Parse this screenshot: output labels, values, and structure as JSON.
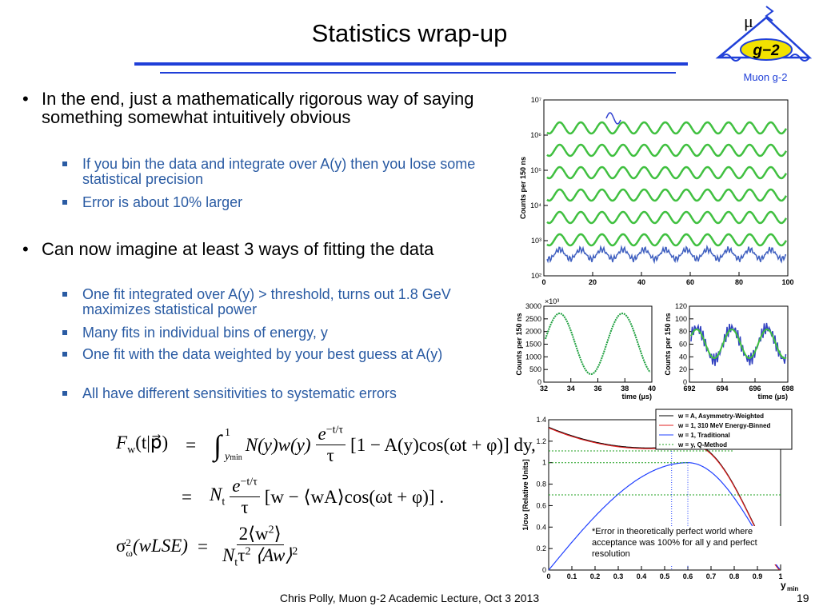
{
  "header": {
    "title": "Statistics wrap-up",
    "logo": {
      "symbol": "μ",
      "badge": "g−2",
      "caption": "Muon g-2"
    }
  },
  "bullets": [
    {
      "text": "In the end, just a mathematically rigorous way of saying something somewhat intuitively obvious",
      "sub": [
        "If you bin the data and integrate over A(y) then you lose some statistical precision",
        "Error is about 10% larger"
      ]
    },
    {
      "text": "Can now imagine at least 3 ways of fitting the data",
      "sub": [
        "One fit integrated over A(y) > threshold, turns out 1.8 GeV maximizes statistical power",
        "Many fits in individual bins of energy, y",
        "One fit with the data weighted by your best guess at A(y)",
        "All have different sensitivities to systematic errors"
      ]
    }
  ],
  "equations": [
    [
      "F",
      "w",
      "(t|p⃗)",
      "=",
      "∫",
      "1",
      "y",
      "min",
      "N(y)w(y)",
      "e",
      "−t/τ",
      "τ",
      "[1 − A(y)cos(ωt + φ)] dy,"
    ],
    [
      "=",
      "N",
      "t",
      "e",
      "−t/τ",
      "τ",
      "[w − ⟨wA⟩cos(ωt + φ)] ."
    ],
    [
      "σ",
      "ω",
      "2",
      "(wLSE)",
      "=",
      "2⟨w",
      "2",
      "⟩",
      "N",
      "t",
      "τ",
      "2",
      "⟨Aw⟩",
      "2"
    ]
  ],
  "figures": {
    "top": {
      "ylabel": "Counts per 150 ns",
      "yticks": [
        "10²",
        "10³",
        "10⁴",
        "10⁵",
        "10⁶",
        "10⁷"
      ],
      "xticks": [
        0,
        20,
        40,
        60,
        80,
        100
      ]
    },
    "left": {
      "multiplier": "×10³",
      "ylabel": "Counts per 150 ns",
      "yticks": [
        0,
        500,
        1000,
        1500,
        2000,
        2500,
        3000
      ],
      "xticks": [
        32,
        34,
        36,
        38,
        40
      ],
      "xlabel": "time (μs)"
    },
    "right": {
      "ylabel": "Counts per 150 ns",
      "yticks": [
        0,
        20,
        40,
        60,
        80,
        100,
        120
      ],
      "xticks": [
        692,
        694,
        696,
        698
      ],
      "xlabel": "time (μs)"
    },
    "bottom": {
      "ylabel": "1/σω  [Relative Units]",
      "yticks": [
        0,
        0.2,
        0.4,
        0.6,
        0.8,
        1,
        1.2,
        1.4
      ],
      "xticks": [
        0,
        0.1,
        0.2,
        0.3,
        0.4,
        0.5,
        0.6,
        0.7,
        0.8,
        0.9,
        1
      ],
      "xlabel": "y",
      "xlabel_sub": "min",
      "legend": [
        {
          "name": "w = A, Asymmetry-Weighted",
          "color": "#000000"
        },
        {
          "name": "w = 1, 310 MeV Energy-Binned",
          "color": "#e02020"
        },
        {
          "name": "w = 1, Traditional",
          "color": "#2040ff"
        },
        {
          "name": "w = y, Q-Method",
          "color": "#20a020"
        }
      ],
      "annotation": "*Error in theoretically perfect world where acceptance was 100% for all y and perfect resolution"
    }
  },
  "footer": {
    "credit": "Chris Polly, Muon g-2 Academic Lecture, Oct 3 2013",
    "page": "19"
  }
}
